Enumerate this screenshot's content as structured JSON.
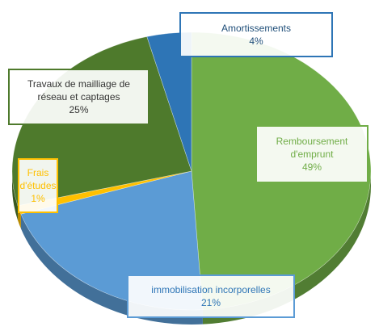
{
  "chart_data": {
    "type": "pie",
    "categories": [
      "Remboursement d'emprunt",
      "immobilisation incorporelles",
      "Frais d'études",
      "Travaux de mailliage de réseau et captages",
      "Amortissements"
    ],
    "values": [
      49,
      21,
      1,
      25,
      4
    ],
    "value_labels": [
      "49%",
      "21%",
      "1%",
      "25%",
      "4%"
    ],
    "colors": [
      "#70ad47",
      "#5b9bd5",
      "#ffc000",
      "#4e7a2c",
      "#2e75b6"
    ]
  }
}
